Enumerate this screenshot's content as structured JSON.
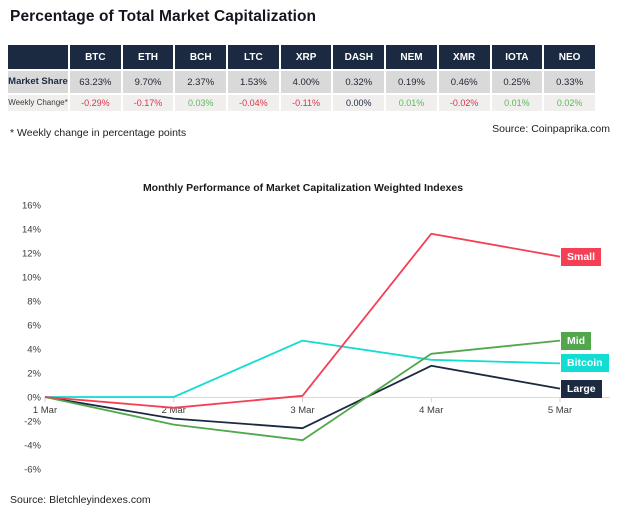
{
  "page": {
    "title": "Percentage of Total Market Capitalization",
    "footnote": "* Weekly change in percentage points",
    "table_source": "Source: Coinpaprika.com",
    "chart_source": "Source: Bletchleyindexes.com"
  },
  "table": {
    "columns": [
      "BTC",
      "ETH",
      "BCH",
      "LTC",
      "XRP",
      "DASH",
      "NEM",
      "XMR",
      "IOTA",
      "NEO"
    ],
    "rows": [
      {
        "label": "Market Share",
        "values": [
          "63.23%",
          "9.70%",
          "2.37%",
          "1.53%",
          "4.00%",
          "0.32%",
          "0.19%",
          "0.46%",
          "0.25%",
          "0.33%"
        ]
      },
      {
        "label": "Weekly Change*",
        "values": [
          "-0.29%",
          "-0.17%",
          "0.03%",
          "-0.04%",
          "-0.11%",
          "0.00%",
          "0.01%",
          "-0.02%",
          "0.01%",
          "0.02%"
        ]
      }
    ],
    "colors": {
      "header_bg": "#1b2a41",
      "header_text": "#ffffff",
      "market_row_bg": "#d9d9d9",
      "weekly_row_bg": "#f0efee",
      "negative": "#d63649",
      "positive": "#5cb85c",
      "neutral": "#1b2a41"
    }
  },
  "chart_data": {
    "type": "line",
    "title": "Monthly Performance of Market Capitalization Weighted Indexes",
    "categories": [
      "1 Mar",
      "2 Mar",
      "3 Mar",
      "4 Mar",
      "5 Mar"
    ],
    "series": [
      {
        "name": "Small",
        "color": "#f43f54",
        "values": [
          0,
          -0.9,
          0.1,
          13.6,
          11.7
        ]
      },
      {
        "name": "Mid",
        "color": "#52a74c",
        "values": [
          0,
          -2.3,
          -3.6,
          3.6,
          4.7
        ]
      },
      {
        "name": "Bitcoin",
        "color": "#12ddd2",
        "values": [
          0,
          0.0,
          4.7,
          3.1,
          2.8
        ]
      },
      {
        "name": "Large",
        "color": "#1b2a41",
        "values": [
          0,
          -1.8,
          -2.6,
          2.6,
          0.7
        ]
      }
    ],
    "ylim": [
      -6,
      16
    ],
    "ytick_step": 2,
    "ytick_format": "percent",
    "grid": "zero-line-only",
    "legend_position": "right-end-badges"
  }
}
